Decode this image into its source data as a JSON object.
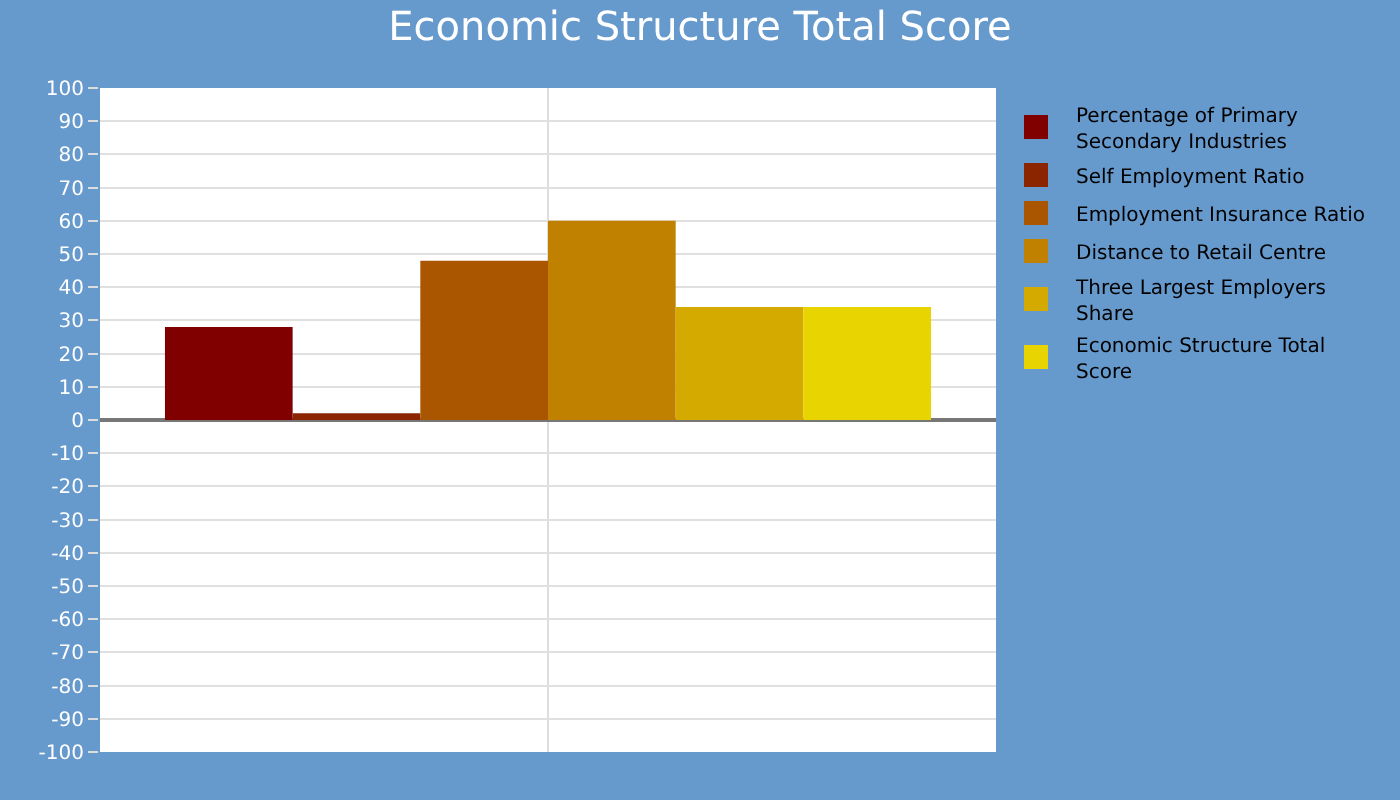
{
  "chart_data": {
    "type": "bar",
    "title": "Economic Structure Total Score",
    "categories": [
      null
    ],
    "series": [
      {
        "name": "Percentage of Primary Secondary Industries",
        "color": "#800000",
        "values": [
          28
        ]
      },
      {
        "name": "Self Employment Ratio",
        "color": "#8b2500",
        "values": [
          2
        ]
      },
      {
        "name": "Employment Insurance Ratio",
        "color": "#aa5500",
        "values": [
          48
        ]
      },
      {
        "name": "Distance to Retail Centre",
        "color": "#c08000",
        "values": [
          60
        ]
      },
      {
        "name": "Three Largest Employers Share",
        "color": "#d4aa00",
        "values": [
          34
        ]
      },
      {
        "name": "Economic Structure Total Score",
        "color": "#e8d400",
        "values": [
          34
        ]
      }
    ],
    "ylim": [
      -100,
      100
    ],
    "yticks": [
      -100,
      -90,
      -80,
      -70,
      -60,
      -50,
      -40,
      -30,
      -20,
      -10,
      0,
      10,
      20,
      30,
      40,
      50,
      60,
      70,
      80,
      90,
      100
    ],
    "grid": true,
    "legend": "right"
  }
}
